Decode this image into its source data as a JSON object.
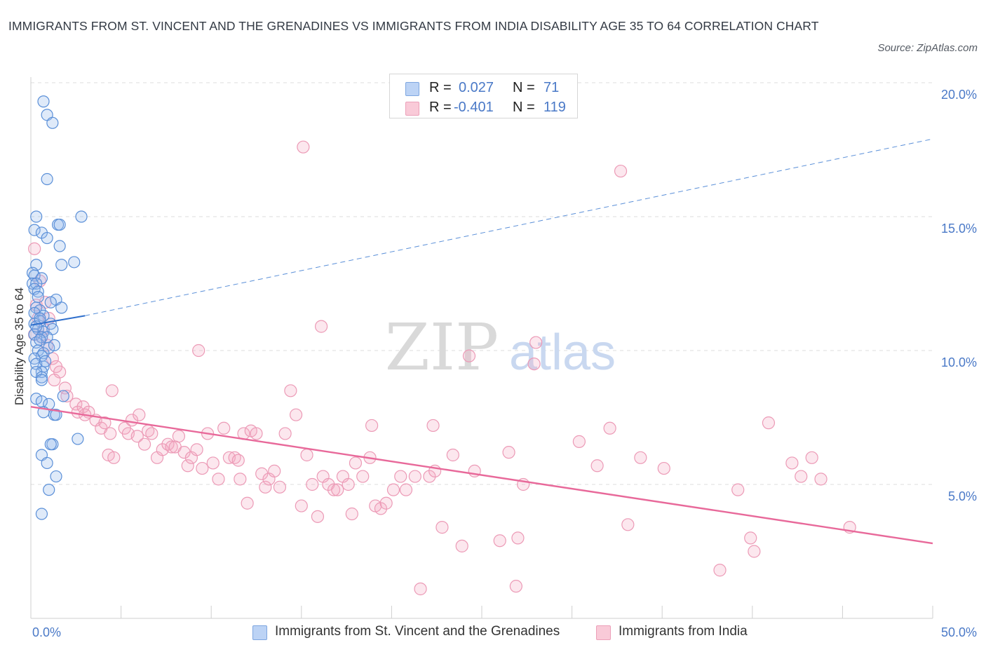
{
  "title": "IMMIGRANTS FROM ST. VINCENT AND THE GRENADINES VS IMMIGRANTS FROM INDIA DISABILITY AGE 35 TO 64 CORRELATION CHART",
  "source": "Source: ZipAtlas.com",
  "watermark": {
    "zip": "ZIP",
    "atlas": "atlas"
  },
  "legend": {
    "r_label": "R =",
    "n_label": "N =",
    "rows": [
      {
        "r": "0.027",
        "n": "71",
        "color": "#a9c4ee"
      },
      {
        "r": "-0.401",
        "n": "119",
        "color": "#f5b8cb"
      }
    ]
  },
  "bottom_legend": [
    "Immigrants from St. Vincent and the Grenadines",
    "Immigrants from India"
  ],
  "chart_data": {
    "type": "scatter",
    "title": "IMMIGRANTS FROM ST. VINCENT AND THE GRENADINES VS IMMIGRANTS FROM INDIA DISABILITY AGE 35 TO 64 CORRELATION CHART",
    "xlabel": "",
    "ylabel": "Disability Age 35 to 64",
    "xlim": [
      0,
      50
    ],
    "ylim": [
      0,
      20
    ],
    "x_tick_labels": [
      "0.0%",
      "50.0%"
    ],
    "y_ticks": [
      5,
      10,
      15,
      20
    ],
    "y_tick_labels": [
      "5.0%",
      "10.0%",
      "15.0%",
      "20.0%"
    ],
    "grid": true,
    "legend_position": "top-center",
    "colors": {
      "series1": "#4a86d8",
      "series2": "#e8699a"
    },
    "series": [
      {
        "name": "Immigrants from St. Vincent and the Grenadines",
        "r": 0.027,
        "n": 71,
        "trend": {
          "x": [
            0,
            3
          ],
          "y": [
            10.95,
            11.3
          ],
          "extended_to": [
            50,
            17.9
          ]
        },
        "points": [
          [
            0.7,
            19.3
          ],
          [
            0.9,
            18.8
          ],
          [
            1.2,
            18.5
          ],
          [
            0.9,
            16.4
          ],
          [
            0.3,
            15.0
          ],
          [
            2.8,
            15.0
          ],
          [
            1.5,
            14.7
          ],
          [
            1.6,
            14.7
          ],
          [
            0.2,
            14.5
          ],
          [
            0.6,
            14.4
          ],
          [
            0.9,
            14.2
          ],
          [
            1.6,
            13.9
          ],
          [
            2.4,
            13.3
          ],
          [
            1.7,
            13.2
          ],
          [
            0.3,
            13.2
          ],
          [
            0.1,
            12.9
          ],
          [
            0.2,
            12.8
          ],
          [
            0.6,
            12.7
          ],
          [
            0.1,
            12.5
          ],
          [
            0.3,
            12.5
          ],
          [
            0.2,
            12.3
          ],
          [
            0.4,
            12.2
          ],
          [
            1.4,
            11.9
          ],
          [
            1.1,
            11.8
          ],
          [
            1.7,
            11.6
          ],
          [
            0.3,
            11.6
          ],
          [
            0.5,
            11.5
          ],
          [
            0.2,
            11.4
          ],
          [
            0.7,
            11.3
          ],
          [
            0.5,
            11.1
          ],
          [
            0.2,
            11.0
          ],
          [
            1.1,
            11.0
          ],
          [
            0.4,
            10.8
          ],
          [
            0.7,
            10.7
          ],
          [
            1.2,
            10.8
          ],
          [
            0.2,
            10.6
          ],
          [
            0.6,
            10.5
          ],
          [
            0.9,
            10.5
          ],
          [
            0.3,
            10.3
          ],
          [
            0.5,
            10.4
          ],
          [
            1.0,
            10.1
          ],
          [
            0.4,
            10.0
          ],
          [
            0.7,
            9.9
          ],
          [
            0.6,
            9.8
          ],
          [
            0.2,
            9.7
          ],
          [
            0.7,
            9.4
          ],
          [
            0.3,
            9.5
          ],
          [
            0.6,
            9.2
          ],
          [
            0.3,
            9.2
          ],
          [
            0.6,
            9.0
          ],
          [
            0.6,
            8.9
          ],
          [
            1.8,
            8.3
          ],
          [
            0.3,
            8.2
          ],
          [
            0.6,
            8.1
          ],
          [
            1.0,
            8.0
          ],
          [
            0.7,
            7.7
          ],
          [
            1.3,
            7.6
          ],
          [
            1.4,
            7.6
          ],
          [
            2.6,
            6.7
          ],
          [
            1.2,
            6.5
          ],
          [
            1.1,
            6.5
          ],
          [
            0.6,
            6.1
          ],
          [
            0.9,
            5.8
          ],
          [
            1.4,
            5.3
          ],
          [
            1.0,
            4.8
          ],
          [
            0.6,
            3.9
          ],
          [
            0.3,
            10.9
          ],
          [
            0.5,
            11.2
          ],
          [
            0.8,
            9.6
          ],
          [
            0.4,
            12.0
          ],
          [
            1.3,
            10.2
          ]
        ]
      },
      {
        "name": "Immigrants from India",
        "r": -0.401,
        "n": 119,
        "trend": {
          "x": [
            0,
            50
          ],
          "y": [
            7.9,
            2.8
          ]
        },
        "points": [
          [
            0.2,
            13.8
          ],
          [
            0.5,
            12.6
          ],
          [
            0.3,
            11.7
          ],
          [
            0.8,
            11.8
          ],
          [
            0.4,
            11.2
          ],
          [
            1.0,
            11.2
          ],
          [
            0.7,
            10.8
          ],
          [
            0.2,
            10.6
          ],
          [
            0.6,
            10.5
          ],
          [
            0.9,
            10.2
          ],
          [
            1.2,
            9.7
          ],
          [
            1.4,
            9.4
          ],
          [
            1.6,
            9.2
          ],
          [
            1.3,
            8.9
          ],
          [
            1.9,
            8.6
          ],
          [
            2.0,
            8.3
          ],
          [
            2.5,
            8.0
          ],
          [
            2.6,
            7.7
          ],
          [
            2.9,
            7.9
          ],
          [
            3.2,
            7.7
          ],
          [
            3.0,
            7.6
          ],
          [
            3.6,
            7.4
          ],
          [
            3.9,
            7.1
          ],
          [
            4.1,
            7.3
          ],
          [
            4.4,
            6.9
          ],
          [
            4.3,
            6.1
          ],
          [
            4.6,
            6.0
          ],
          [
            5.2,
            7.1
          ],
          [
            5.4,
            6.9
          ],
          [
            5.6,
            7.4
          ],
          [
            5.9,
            6.8
          ],
          [
            6.0,
            7.6
          ],
          [
            6.3,
            6.5
          ],
          [
            6.5,
            7.0
          ],
          [
            6.7,
            6.9
          ],
          [
            7.0,
            6.0
          ],
          [
            7.3,
            6.3
          ],
          [
            7.6,
            6.5
          ],
          [
            7.8,
            6.4
          ],
          [
            8.0,
            6.4
          ],
          [
            8.2,
            6.8
          ],
          [
            8.5,
            6.2
          ],
          [
            8.7,
            5.7
          ],
          [
            8.9,
            6.0
          ],
          [
            9.2,
            6.3
          ],
          [
            9.5,
            5.6
          ],
          [
            9.8,
            6.9
          ],
          [
            10.1,
            5.8
          ],
          [
            10.4,
            5.2
          ],
          [
            10.7,
            7.1
          ],
          [
            11.0,
            6.0
          ],
          [
            11.3,
            6.0
          ],
          [
            11.6,
            5.2
          ],
          [
            11.8,
            6.9
          ],
          [
            12.0,
            4.3
          ],
          [
            12.2,
            7.0
          ],
          [
            12.5,
            6.9
          ],
          [
            12.8,
            5.4
          ],
          [
            13.0,
            4.9
          ],
          [
            13.2,
            5.2
          ],
          [
            13.5,
            5.5
          ],
          [
            13.8,
            4.9
          ],
          [
            14.1,
            6.9
          ],
          [
            14.4,
            8.5
          ],
          [
            14.7,
            7.6
          ],
          [
            15.0,
            4.2
          ],
          [
            15.3,
            6.1
          ],
          [
            15.6,
            5.0
          ],
          [
            15.9,
            3.8
          ],
          [
            16.2,
            5.3
          ],
          [
            16.5,
            5.0
          ],
          [
            16.8,
            4.8
          ],
          [
            17.0,
            4.8
          ],
          [
            17.3,
            5.3
          ],
          [
            17.6,
            5.0
          ],
          [
            17.8,
            3.9
          ],
          [
            18.0,
            5.8
          ],
          [
            18.4,
            5.3
          ],
          [
            18.8,
            6.0
          ],
          [
            19.1,
            4.2
          ],
          [
            19.4,
            4.1
          ],
          [
            19.7,
            4.3
          ],
          [
            20.1,
            4.8
          ],
          [
            20.5,
            5.3
          ],
          [
            20.8,
            4.8
          ],
          [
            21.3,
            5.3
          ],
          [
            21.6,
            1.1
          ],
          [
            22.1,
            5.3
          ],
          [
            22.4,
            5.5
          ],
          [
            22.8,
            3.4
          ],
          [
            23.4,
            6.1
          ],
          [
            23.9,
            2.7
          ],
          [
            24.6,
            5.5
          ],
          [
            26.0,
            2.9
          ],
          [
            26.5,
            6.2
          ],
          [
            26.9,
            1.2
          ],
          [
            27.0,
            3.0
          ],
          [
            27.3,
            5.0
          ],
          [
            27.9,
            9.5
          ],
          [
            28.0,
            10.3
          ],
          [
            30.4,
            6.6
          ],
          [
            31.4,
            5.7
          ],
          [
            32.1,
            7.1
          ],
          [
            33.1,
            3.5
          ],
          [
            33.8,
            6.0
          ],
          [
            35.1,
            5.6
          ],
          [
            32.7,
            16.7
          ],
          [
            38.2,
            1.8
          ],
          [
            39.2,
            4.8
          ],
          [
            39.9,
            3.0
          ],
          [
            40.1,
            2.5
          ],
          [
            40.9,
            7.3
          ],
          [
            42.2,
            5.8
          ],
          [
            42.7,
            5.3
          ],
          [
            43.3,
            6.0
          ],
          [
            43.8,
            5.2
          ],
          [
            45.4,
            3.4
          ],
          [
            15.1,
            17.6
          ],
          [
            16.1,
            10.9
          ],
          [
            22.3,
            7.2
          ],
          [
            9.3,
            10.0
          ],
          [
            4.5,
            8.5
          ],
          [
            18.9,
            7.2
          ],
          [
            24.3,
            9.8
          ],
          [
            11.5,
            5.9
          ]
        ]
      }
    ]
  }
}
